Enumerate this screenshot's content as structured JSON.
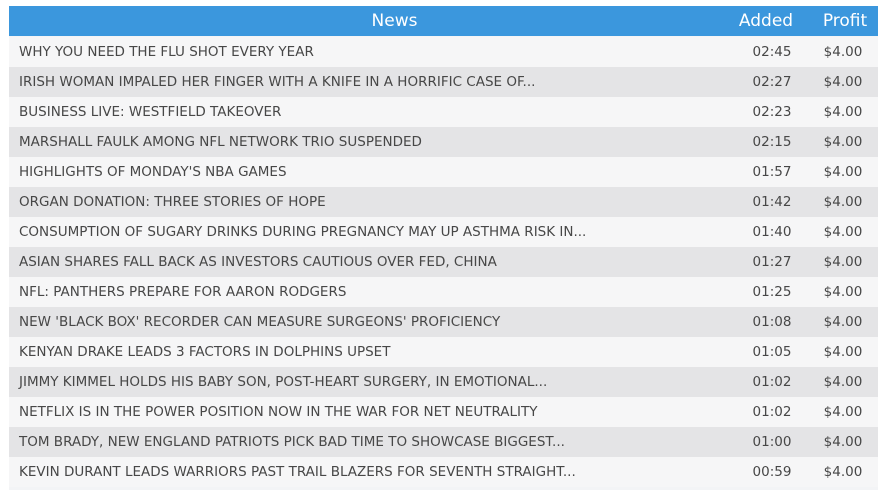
{
  "header": {
    "news_label": "News",
    "added_label": "Added",
    "profit_label": "Profit"
  },
  "colors": {
    "header_bg": "#3b97dd",
    "row_light": "#f6f6f7",
    "row_dark": "#e4e4e6"
  },
  "rows": [
    {
      "title": "WHY YOU NEED THE FLU SHOT EVERY YEAR",
      "added": "02:45",
      "profit": "$4.00"
    },
    {
      "title": "IRISH WOMAN IMPALED HER FINGER WITH A KNIFE IN A HORRIFIC CASE OF...",
      "added": "02:27",
      "profit": "$4.00"
    },
    {
      "title": "BUSINESS LIVE: WESTFIELD TAKEOVER",
      "added": "02:23",
      "profit": "$4.00"
    },
    {
      "title": "MARSHALL FAULK AMONG NFL NETWORK TRIO SUSPENDED",
      "added": "02:15",
      "profit": "$4.00"
    },
    {
      "title": "HIGHLIGHTS OF MONDAY'S NBA GAMES",
      "added": "01:57",
      "profit": "$4.00"
    },
    {
      "title": "ORGAN DONATION: THREE STORIES OF HOPE",
      "added": "01:42",
      "profit": "$4.00"
    },
    {
      "title": "CONSUMPTION OF SUGARY DRINKS DURING PREGNANCY MAY UP ASTHMA RISK IN...",
      "added": "01:40",
      "profit": "$4.00"
    },
    {
      "title": "ASIAN SHARES FALL BACK AS INVESTORS CAUTIOUS OVER FED, CHINA",
      "added": "01:27",
      "profit": "$4.00"
    },
    {
      "title": "NFL: PANTHERS PREPARE FOR AARON RODGERS",
      "added": "01:25",
      "profit": "$4.00"
    },
    {
      "title": "NEW 'BLACK BOX' RECORDER CAN MEASURE SURGEONS' PROFICIENCY",
      "added": "01:08",
      "profit": "$4.00"
    },
    {
      "title": "KENYAN DRAKE LEADS 3 FACTORS IN DOLPHINS UPSET",
      "added": "01:05",
      "profit": "$4.00"
    },
    {
      "title": "JIMMY KIMMEL HOLDS HIS BABY SON, POST-HEART SURGERY, IN EMOTIONAL...",
      "added": "01:02",
      "profit": "$4.00"
    },
    {
      "title": "NETFLIX IS IN THE POWER POSITION NOW IN THE WAR FOR NET NEUTRALITY",
      "added": "01:02",
      "profit": "$4.00"
    },
    {
      "title": "TOM BRADY, NEW ENGLAND PATRIOTS PICK BAD TIME TO SHOWCASE BIGGEST...",
      "added": "01:00",
      "profit": "$4.00"
    },
    {
      "title": "KEVIN DURANT LEADS WARRIORS PAST TRAIL BLAZERS FOR SEVENTH STRAIGHT...",
      "added": "00:59",
      "profit": "$4.00"
    }
  ]
}
